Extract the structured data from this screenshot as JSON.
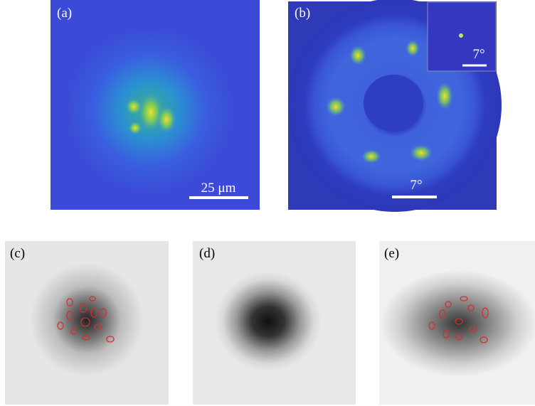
{
  "panels": [
    {
      "label": "(a)",
      "scale_bar": "25 μm"
    },
    {
      "label": "(b)",
      "scale_bar": "7°",
      "inset_scale_bar": "7°"
    },
    {
      "label": "(c)"
    },
    {
      "label": "(d)"
    },
    {
      "label": "(e)"
    }
  ]
}
